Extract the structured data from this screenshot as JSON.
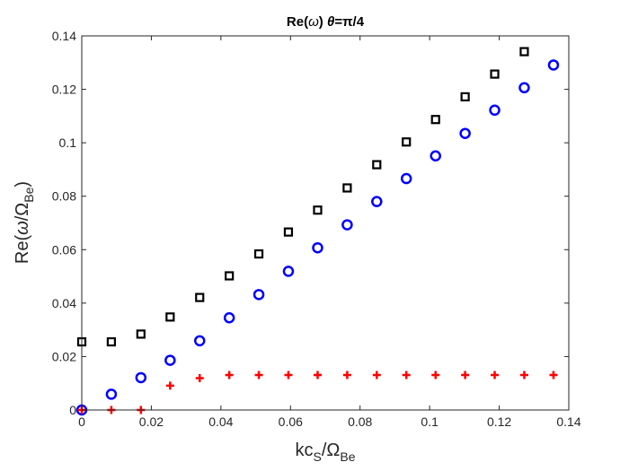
{
  "chart_data": {
    "type": "scatter",
    "title": "Re(ω)  θ=π/4",
    "xlabel": "kc_S/Ω_Be",
    "ylabel": "Re(ω/Ω_Be)",
    "xlim": [
      0,
      0.14
    ],
    "ylim": [
      0,
      0.14
    ],
    "xticks": [
      "0",
      "0.02",
      "0.04",
      "0.06",
      "0.08",
      "0.1",
      "0.12",
      "0.14"
    ],
    "yticks": [
      "0",
      "0.02",
      "0.04",
      "0.06",
      "0.08",
      "0.1",
      "0.12",
      "0.14"
    ],
    "grid": false,
    "x": [
      0,
      0.0085,
      0.017,
      0.0254,
      0.0339,
      0.0424,
      0.0509,
      0.0594,
      0.0678,
      0.0763,
      0.0848,
      0.0933,
      0.1017,
      0.1102,
      0.1187,
      0.1272,
      0.1356
    ],
    "series": [
      {
        "marker": "square",
        "color": "#000000",
        "values": [
          0.0255,
          0.0255,
          0.0284,
          0.0348,
          0.0421,
          0.0502,
          0.0584,
          0.0666,
          0.0748,
          0.0831,
          0.0918,
          0.1003,
          0.1087,
          0.1172,
          0.1257,
          0.1341,
          null
        ]
      },
      {
        "marker": "circle",
        "color": "#0000ff",
        "values": [
          0,
          0.0059,
          0.0121,
          0.0186,
          0.0259,
          0.0345,
          0.0432,
          0.0519,
          0.0607,
          0.0693,
          0.078,
          0.0866,
          0.0951,
          0.1035,
          0.1122,
          0.1206,
          0.1291
        ]
      },
      {
        "marker": "plus",
        "color": "#ff0000",
        "values": [
          0,
          0,
          0,
          0.0091,
          0.0119,
          0.0131,
          0.0131,
          0.0131,
          0.0131,
          0.0131,
          0.0131,
          0.0131,
          0.0131,
          0.0131,
          0.0131,
          0.0131,
          0.0131
        ]
      }
    ]
  }
}
